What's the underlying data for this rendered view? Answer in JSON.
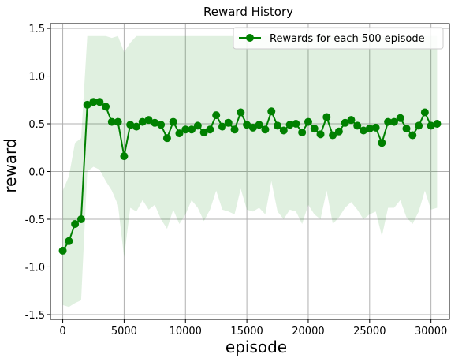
{
  "chart_data": {
    "type": "line",
    "title": "Reward History",
    "xlabel": "episode",
    "ylabel": "reward",
    "xlim": [
      -1000,
      31500
    ],
    "ylim": [
      -1.55,
      1.55
    ],
    "xticks": [
      0,
      5000,
      10000,
      15000,
      20000,
      25000,
      30000
    ],
    "yticks": [
      -1.5,
      -1.0,
      -0.5,
      0.0,
      0.5,
      1.0,
      1.5
    ],
    "grid": true,
    "legend": {
      "position": "top-right"
    },
    "colors": {
      "line": "#008000",
      "band": "#008000"
    },
    "series": [
      {
        "name": "Rewards for each 500 episode",
        "x": [
          0,
          500,
          1000,
          1500,
          2000,
          2500,
          3000,
          3500,
          4000,
          4500,
          5000,
          5500,
          6000,
          6500,
          7000,
          7500,
          8000,
          8500,
          9000,
          9500,
          10000,
          10500,
          11000,
          11500,
          12000,
          12500,
          13000,
          13500,
          14000,
          14500,
          15000,
          15500,
          16000,
          16500,
          17000,
          17500,
          18000,
          18500,
          19000,
          19500,
          20000,
          20500,
          21000,
          21500,
          22000,
          22500,
          23000,
          23500,
          24000,
          24500,
          25000,
          25500,
          26000,
          26500,
          27000,
          27500,
          28000,
          28500,
          29000,
          29500,
          30000,
          30500
        ],
        "values": [
          -0.83,
          -0.73,
          -0.55,
          -0.5,
          0.7,
          0.73,
          0.73,
          0.68,
          0.52,
          0.52,
          0.16,
          0.49,
          0.47,
          0.52,
          0.54,
          0.51,
          0.49,
          0.35,
          0.52,
          0.4,
          0.44,
          0.44,
          0.48,
          0.41,
          0.44,
          0.59,
          0.47,
          0.51,
          0.44,
          0.62,
          0.49,
          0.46,
          0.49,
          0.44,
          0.63,
          0.48,
          0.43,
          0.49,
          0.5,
          0.41,
          0.52,
          0.45,
          0.39,
          0.57,
          0.38,
          0.42,
          0.51,
          0.54,
          0.48,
          0.43,
          0.45,
          0.46,
          0.3,
          0.52,
          0.52,
          0.56,
          0.45,
          0.38,
          0.48,
          0.62,
          0.48,
          0.5
        ],
        "band_upper": [
          -0.2,
          -0.05,
          0.3,
          0.35,
          1.42,
          1.42,
          1.42,
          1.42,
          1.4,
          1.42,
          1.25,
          1.35,
          1.42,
          1.42,
          1.42,
          1.42,
          1.42,
          1.42,
          1.42,
          1.42,
          1.42,
          1.42,
          1.42,
          1.42,
          1.42,
          1.42,
          1.42,
          1.42,
          1.42,
          1.42,
          1.42,
          1.42,
          1.42,
          1.42,
          1.42,
          1.42,
          1.42,
          1.42,
          1.42,
          1.42,
          1.42,
          1.42,
          1.42,
          1.42,
          1.42,
          1.42,
          1.42,
          1.42,
          1.42,
          1.42,
          1.42,
          1.42,
          1.42,
          1.42,
          1.42,
          1.42,
          1.42,
          1.42,
          1.42,
          1.42,
          1.42,
          1.42
        ],
        "band_lower": [
          -1.4,
          -1.42,
          -1.38,
          -1.35,
          0.0,
          0.05,
          0.02,
          -0.1,
          -0.2,
          -0.35,
          -0.9,
          -0.38,
          -0.42,
          -0.3,
          -0.4,
          -0.35,
          -0.5,
          -0.6,
          -0.4,
          -0.55,
          -0.45,
          -0.3,
          -0.38,
          -0.52,
          -0.4,
          -0.2,
          -0.4,
          -0.42,
          -0.45,
          -0.18,
          -0.4,
          -0.42,
          -0.38,
          -0.45,
          -0.1,
          -0.42,
          -0.5,
          -0.4,
          -0.42,
          -0.55,
          -0.35,
          -0.45,
          -0.5,
          -0.2,
          -0.55,
          -0.48,
          -0.38,
          -0.32,
          -0.4,
          -0.5,
          -0.45,
          -0.42,
          -0.68,
          -0.38,
          -0.38,
          -0.3,
          -0.48,
          -0.55,
          -0.42,
          -0.2,
          -0.4,
          -0.38
        ]
      }
    ]
  }
}
